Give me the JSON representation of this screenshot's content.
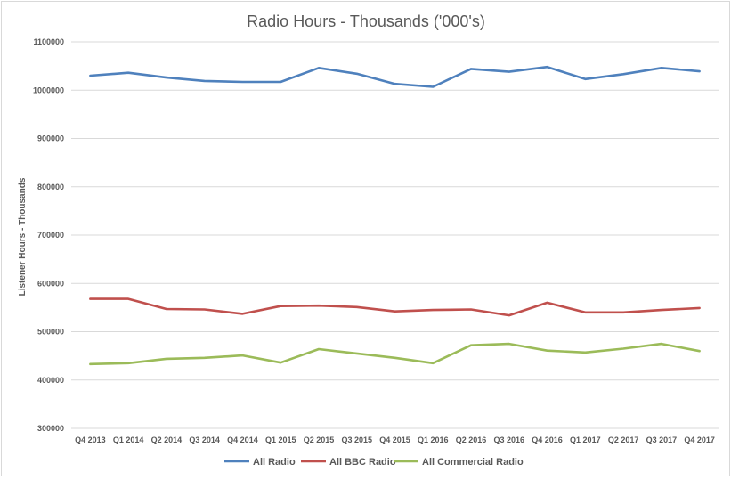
{
  "chart_data": {
    "type": "line",
    "title": "Radio Hours - Thousands ('000's)",
    "xlabel": "",
    "ylabel": "Listener Hours - Thousands",
    "ylim": [
      300000,
      1100000
    ],
    "yticks": [
      "1100000",
      "1000000",
      "900000",
      "800000",
      "700000",
      "600000",
      "500000",
      "400000",
      "300000"
    ],
    "ytick_values": [
      1100000,
      1000000,
      900000,
      800000,
      700000,
      600000,
      500000,
      400000,
      300000
    ],
    "grid": true,
    "legend_position": "bottom",
    "categories": [
      "Q4 2013",
      "Q1 2014",
      "Q2 2014",
      "Q3 2014",
      "Q4 2014",
      "Q1 2015",
      "Q2 2015",
      "Q3 2015",
      "Q4 2015",
      "Q1 2016",
      "Q2 2016",
      "Q3 2016",
      "Q4 2016",
      "Q1 2017",
      "Q2 2017",
      "Q3 2017",
      "Q4 2017"
    ],
    "series": [
      {
        "name": "All Radio",
        "color": "#4f81bd",
        "values": [
          1030000,
          1036000,
          1026000,
          1019000,
          1017000,
          1017000,
          1046000,
          1034000,
          1013000,
          1007000,
          1044000,
          1038000,
          1048000,
          1023000,
          1033000,
          1046000,
          1039000
        ]
      },
      {
        "name": "All BBC Radio",
        "color": "#c0504d",
        "values": [
          568000,
          568000,
          547000,
          546000,
          537000,
          553000,
          554000,
          551000,
          542000,
          545000,
          546000,
          534000,
          560000,
          540000,
          540000,
          545000,
          549000
        ]
      },
      {
        "name": "All Commercial Radio",
        "color": "#9bbb59",
        "values": [
          433000,
          435000,
          444000,
          446000,
          451000,
          436000,
          464000,
          455000,
          446000,
          435000,
          472000,
          475000,
          461000,
          457000,
          465000,
          475000,
          460000
        ]
      }
    ]
  }
}
